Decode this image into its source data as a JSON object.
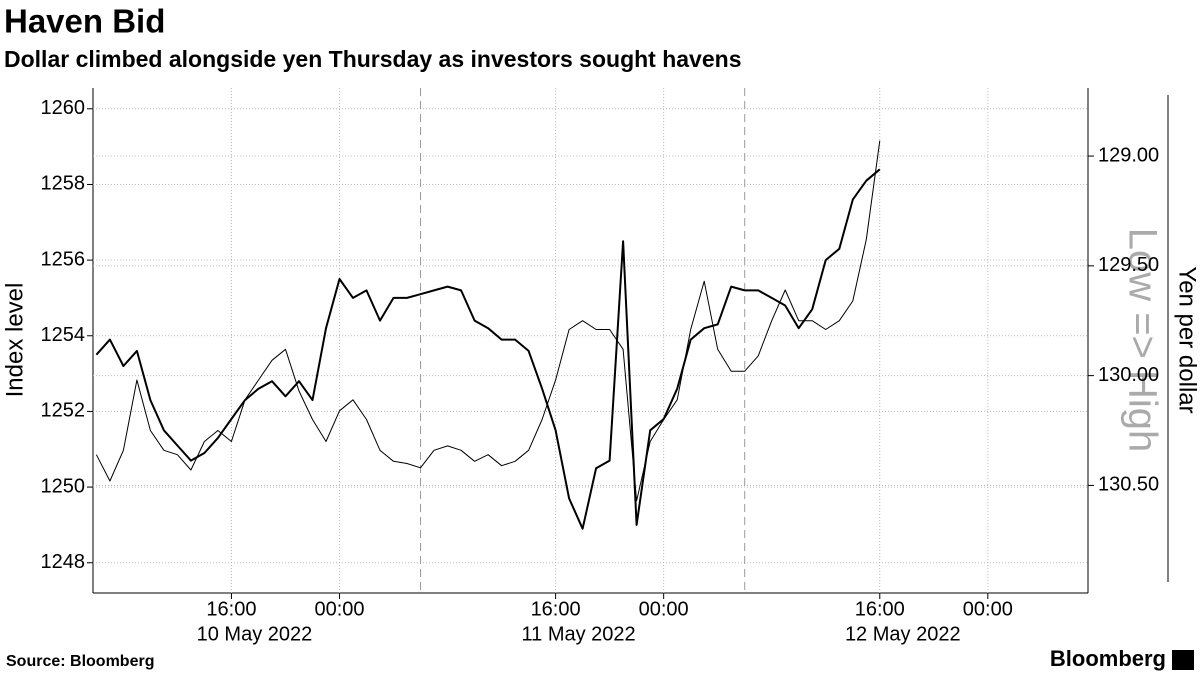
{
  "chart_data": {
    "type": "line",
    "title": "Haven Bid",
    "subtitle": "Dollar climbed alongside yen Thursday as investors sought havens",
    "ylabel": "Index level",
    "y2label": "Yen per dollar",
    "annotation": "Low => High",
    "source": "Source: Bloomberg",
    "brand": "Bloomberg",
    "grid": true,
    "y2_inverted": true,
    "xlim": [
      "2022-05-10 05:45",
      "2022-05-13 07:25"
    ],
    "xticks": [
      {
        "value": "2022-05-10 16:00",
        "label": "16:00"
      },
      {
        "value": "2022-05-11 00:00",
        "label": "00:00"
      },
      {
        "value": "2022-05-11 16:00",
        "label": "16:00"
      },
      {
        "value": "2022-05-12 00:00",
        "label": "00:00"
      },
      {
        "value": "2022-05-12 16:00",
        "label": "16:00"
      },
      {
        "value": "2022-05-13 00:00",
        "label": "00:00"
      }
    ],
    "x_date_labels": [
      {
        "value": "2022-05-10 16:00",
        "label": "10 May 2022"
      },
      {
        "value": "2022-05-11 16:00",
        "label": "11 May 2022"
      },
      {
        "value": "2022-05-12 16:00",
        "label": "12 May 2022"
      }
    ],
    "x_dashed_lines": [
      "2022-05-11 06:00",
      "2022-05-12 06:00"
    ],
    "ylim": [
      1247.2,
      1260.55
    ],
    "yticks": [
      1248,
      1250,
      1252,
      1254,
      1256,
      1258,
      1260
    ],
    "y2lim": [
      128.69,
      130.99
    ],
    "y2ticks": [
      {
        "value": 129,
        "label": "129.00"
      },
      {
        "value": 129.5,
        "label": "129.50"
      },
      {
        "value": 130,
        "label": "130.00"
      },
      {
        "value": 130.5,
        "label": "130.50"
      }
    ],
    "x": [
      "2022-05-10 06:00",
      "2022-05-10 07:00",
      "2022-05-10 08:00",
      "2022-05-10 09:00",
      "2022-05-10 10:00",
      "2022-05-10 11:00",
      "2022-05-10 12:00",
      "2022-05-10 13:00",
      "2022-05-10 14:00",
      "2022-05-10 15:00",
      "2022-05-10 16:00",
      "2022-05-10 17:00",
      "2022-05-10 18:00",
      "2022-05-10 19:00",
      "2022-05-10 20:00",
      "2022-05-10 21:00",
      "2022-05-10 22:00",
      "2022-05-10 23:00",
      "2022-05-11 00:00",
      "2022-05-11 01:00",
      "2022-05-11 02:00",
      "2022-05-11 03:00",
      "2022-05-11 04:00",
      "2022-05-11 05:00",
      "2022-05-11 06:00",
      "2022-05-11 07:00",
      "2022-05-11 08:00",
      "2022-05-11 09:00",
      "2022-05-11 10:00",
      "2022-05-11 11:00",
      "2022-05-11 12:00",
      "2022-05-11 13:00",
      "2022-05-11 14:00",
      "2022-05-11 15:00",
      "2022-05-11 16:00",
      "2022-05-11 17:00",
      "2022-05-11 18:00",
      "2022-05-11 19:00",
      "2022-05-11 20:00",
      "2022-05-11 21:00",
      "2022-05-11 22:00",
      "2022-05-11 23:00",
      "2022-05-12 00:00",
      "2022-05-12 01:00",
      "2022-05-12 02:00",
      "2022-05-12 03:00",
      "2022-05-12 04:00",
      "2022-05-12 05:00",
      "2022-05-12 06:00",
      "2022-05-12 07:00",
      "2022-05-12 08:00",
      "2022-05-12 09:00",
      "2022-05-12 10:00",
      "2022-05-12 11:00",
      "2022-05-12 12:00",
      "2022-05-12 13:00",
      "2022-05-12 14:00",
      "2022-05-12 15:00",
      "2022-05-12 16:00"
    ],
    "series": [
      {
        "name": "Index level",
        "color": "#000000",
        "width": 2,
        "values": [
          1253.5,
          1253.9,
          1253.2,
          1253.6,
          1252.3,
          1251.5,
          1251.1,
          1250.7,
          1250.9,
          1251.3,
          1251.8,
          1252.3,
          1252.6,
          1252.8,
          1252.4,
          1252.8,
          1252.3,
          1254.2,
          1255.5,
          1255.0,
          1255.2,
          1254.4,
          1255.0,
          1255.0,
          1255.1,
          1255.2,
          1255.3,
          1255.2,
          1254.4,
          1254.2,
          1253.9,
          1253.9,
          1253.6,
          1252.6,
          1251.5,
          1249.7,
          1248.9,
          1250.5,
          1250.7,
          1256.5,
          1249.0,
          1251.5,
          1251.8,
          1252.6,
          1253.9,
          1254.2,
          1254.3,
          1255.3,
          1255.2,
          1255.2,
          1255.0,
          1254.8,
          1254.2,
          1254.7,
          1256.0,
          1256.3,
          1257.6,
          1258.1,
          1258.4
        ]
      },
      {
        "name": "Yen per dollar",
        "color": "#000000",
        "width": 1,
        "axis": "y2",
        "values": [
          130.36,
          130.48,
          130.34,
          130.02,
          130.25,
          130.34,
          130.36,
          130.43,
          130.3,
          130.25,
          130.3,
          130.11,
          130.02,
          129.93,
          129.88,
          130.07,
          130.2,
          130.3,
          130.16,
          130.11,
          130.2,
          130.34,
          130.39,
          130.4,
          130.42,
          130.34,
          130.32,
          130.34,
          130.39,
          130.36,
          130.41,
          130.39,
          130.34,
          130.2,
          130.02,
          129.79,
          129.75,
          129.79,
          129.79,
          129.88,
          130.57,
          130.3,
          130.2,
          130.11,
          129.79,
          129.57,
          129.88,
          129.98,
          129.98,
          129.91,
          129.75,
          129.61,
          129.75,
          129.75,
          129.79,
          129.75,
          129.66,
          129.38,
          128.93
        ]
      }
    ]
  }
}
